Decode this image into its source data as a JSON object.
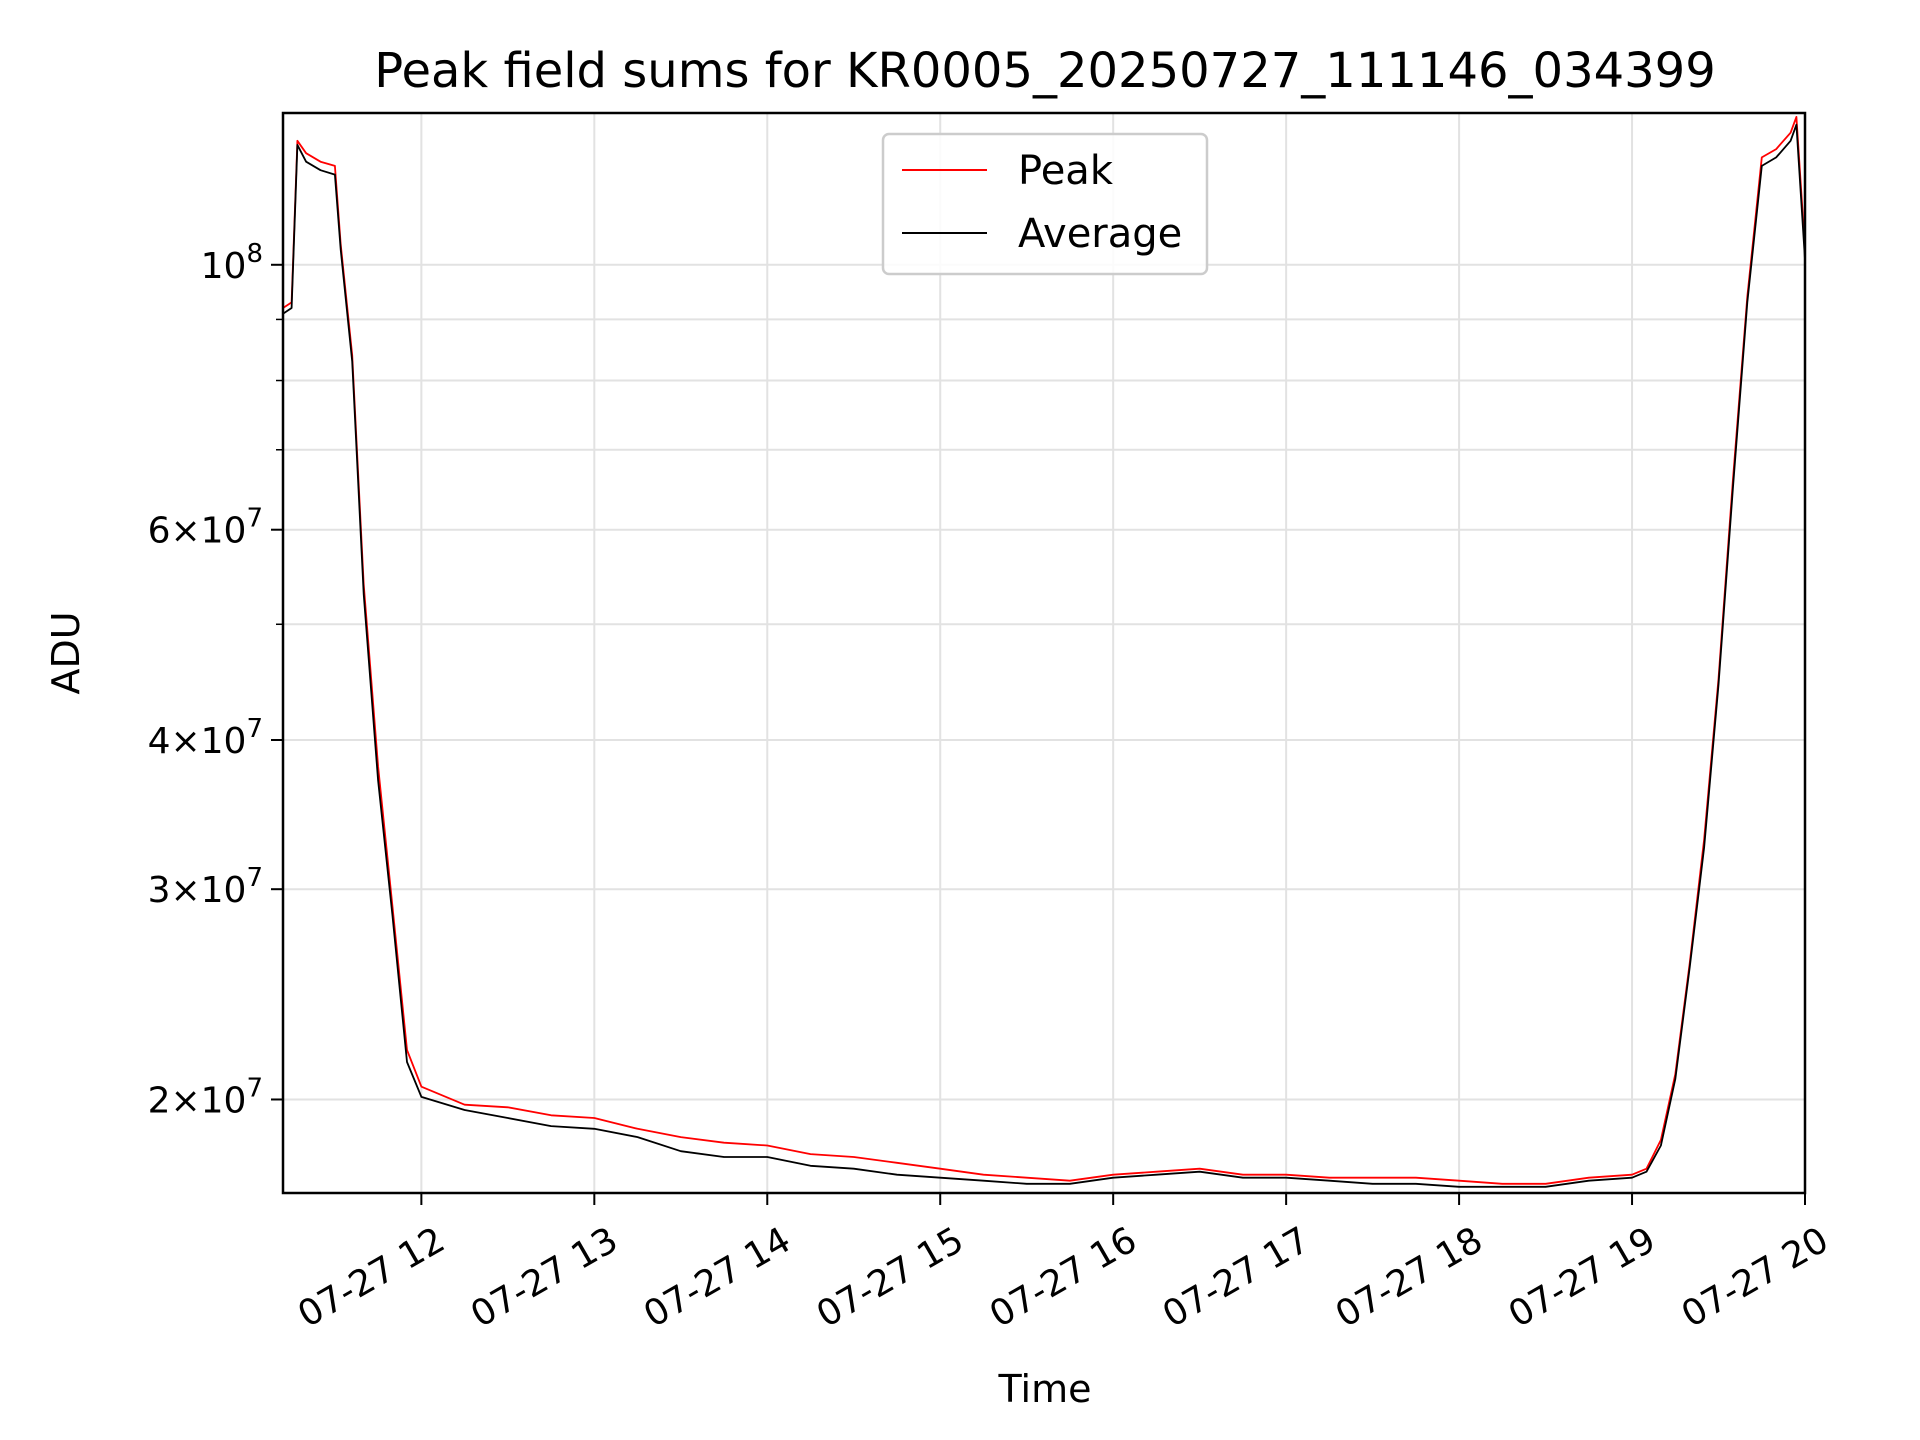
{
  "chart_data": {
    "type": "line",
    "title": "Peak field sums for KR0005_20250727_111146_034399",
    "xlabel": "Time",
    "ylabel": "ADU",
    "y_scale": "log",
    "grid": true,
    "legend_position": "upper center",
    "x_ticks": [
      "07-27 12",
      "07-27 13",
      "07-27 14",
      "07-27 15",
      "07-27 16",
      "07-27 17",
      "07-27 18",
      "07-27 19",
      "07-27 20"
    ],
    "y_ticks": [
      {
        "value": 20000000,
        "base": "2",
        "exp": "7"
      },
      {
        "value": 30000000,
        "base": "3",
        "exp": "7"
      },
      {
        "value": 40000000,
        "base": "4",
        "exp": "7"
      },
      {
        "value": 60000000,
        "base": "6",
        "exp": "7"
      },
      {
        "value": 100000000,
        "base": "10",
        "exp": "8"
      }
    ],
    "xlim": [
      "2025-07-27 11:12",
      "2025-07-27 20:00"
    ],
    "ylim": [
      16700000,
      134000000
    ],
    "series": [
      {
        "name": "Peak",
        "color": "#ff0000",
        "x": [
          "2025-07-27 11:12",
          "2025-07-27 11:15",
          "2025-07-27 11:17",
          "2025-07-27 11:20",
          "2025-07-27 11:25",
          "2025-07-27 11:30",
          "2025-07-27 11:32",
          "2025-07-27 11:36",
          "2025-07-27 11:40",
          "2025-07-27 11:45",
          "2025-07-27 11:50",
          "2025-07-27 11:55",
          "2025-07-27 12:00",
          "2025-07-27 12:15",
          "2025-07-27 12:30",
          "2025-07-27 12:45",
          "2025-07-27 13:00",
          "2025-07-27 13:15",
          "2025-07-27 13:30",
          "2025-07-27 13:45",
          "2025-07-27 14:00",
          "2025-07-27 14:15",
          "2025-07-27 14:30",
          "2025-07-27 14:45",
          "2025-07-27 15:00",
          "2025-07-27 15:15",
          "2025-07-27 15:30",
          "2025-07-27 15:45",
          "2025-07-27 16:00",
          "2025-07-27 16:15",
          "2025-07-27 16:30",
          "2025-07-27 16:45",
          "2025-07-27 17:00",
          "2025-07-27 17:15",
          "2025-07-27 17:30",
          "2025-07-27 17:45",
          "2025-07-27 18:00",
          "2025-07-27 18:15",
          "2025-07-27 18:30",
          "2025-07-27 18:45",
          "2025-07-27 19:00",
          "2025-07-27 19:05",
          "2025-07-27 19:10",
          "2025-07-27 19:15",
          "2025-07-27 19:20",
          "2025-07-27 19:25",
          "2025-07-27 19:30",
          "2025-07-27 19:35",
          "2025-07-27 19:40",
          "2025-07-27 19:45",
          "2025-07-27 19:50",
          "2025-07-27 19:55",
          "2025-07-27 19:57",
          "2025-07-27 20:00"
        ],
        "y": [
          92000000,
          93000000,
          127000000,
          124000000,
          122000000,
          121000000,
          104000000,
          84000000,
          54000000,
          38000000,
          29000000,
          22000000,
          20500000,
          19800000,
          19700000,
          19400000,
          19300000,
          18900000,
          18600000,
          18400000,
          18300000,
          18000000,
          17900000,
          17700000,
          17500000,
          17300000,
          17200000,
          17100000,
          17300000,
          17400000,
          17500000,
          17300000,
          17300000,
          17200000,
          17200000,
          17200000,
          17100000,
          17000000,
          17000000,
          17200000,
          17300000,
          17500000,
          18500000,
          21000000,
          26000000,
          33000000,
          45000000,
          66000000,
          94000000,
          123000000,
          125000000,
          129000000,
          133000000,
          103000000
        ]
      },
      {
        "name": "Average",
        "color": "#000000",
        "x": [
          "2025-07-27 11:12",
          "2025-07-27 11:15",
          "2025-07-27 11:17",
          "2025-07-27 11:20",
          "2025-07-27 11:25",
          "2025-07-27 11:30",
          "2025-07-27 11:32",
          "2025-07-27 11:36",
          "2025-07-27 11:40",
          "2025-07-27 11:45",
          "2025-07-27 11:50",
          "2025-07-27 11:55",
          "2025-07-27 12:00",
          "2025-07-27 12:15",
          "2025-07-27 12:30",
          "2025-07-27 12:45",
          "2025-07-27 13:00",
          "2025-07-27 13:15",
          "2025-07-27 13:30",
          "2025-07-27 13:45",
          "2025-07-27 14:00",
          "2025-07-27 14:15",
          "2025-07-27 14:30",
          "2025-07-27 14:45",
          "2025-07-27 15:00",
          "2025-07-27 15:15",
          "2025-07-27 15:30",
          "2025-07-27 15:45",
          "2025-07-27 16:00",
          "2025-07-27 16:15",
          "2025-07-27 16:30",
          "2025-07-27 16:45",
          "2025-07-27 17:00",
          "2025-07-27 17:15",
          "2025-07-27 17:30",
          "2025-07-27 17:45",
          "2025-07-27 18:00",
          "2025-07-27 18:15",
          "2025-07-27 18:30",
          "2025-07-27 18:45",
          "2025-07-27 19:00",
          "2025-07-27 19:05",
          "2025-07-27 19:10",
          "2025-07-27 19:15",
          "2025-07-27 19:20",
          "2025-07-27 19:25",
          "2025-07-27 19:30",
          "2025-07-27 19:35",
          "2025-07-27 19:40",
          "2025-07-27 19:45",
          "2025-07-27 19:50",
          "2025-07-27 19:55",
          "2025-07-27 19:57",
          "2025-07-27 20:00"
        ],
        "y": [
          91000000,
          92000000,
          126000000,
          122000000,
          120000000,
          119000000,
          103000000,
          83000000,
          53000000,
          37000000,
          28500000,
          21500000,
          20100000,
          19600000,
          19300000,
          19000000,
          18900000,
          18600000,
          18100000,
          17900000,
          17900000,
          17600000,
          17500000,
          17300000,
          17200000,
          17100000,
          17000000,
          17000000,
          17200000,
          17300000,
          17400000,
          17200000,
          17200000,
          17100000,
          17000000,
          17000000,
          16900000,
          16900000,
          16900000,
          17100000,
          17200000,
          17400000,
          18300000,
          20800000,
          25800000,
          32500000,
          44500000,
          65000000,
          93000000,
          121000000,
          123000000,
          127000000,
          131000000,
          101000000
        ]
      }
    ]
  }
}
